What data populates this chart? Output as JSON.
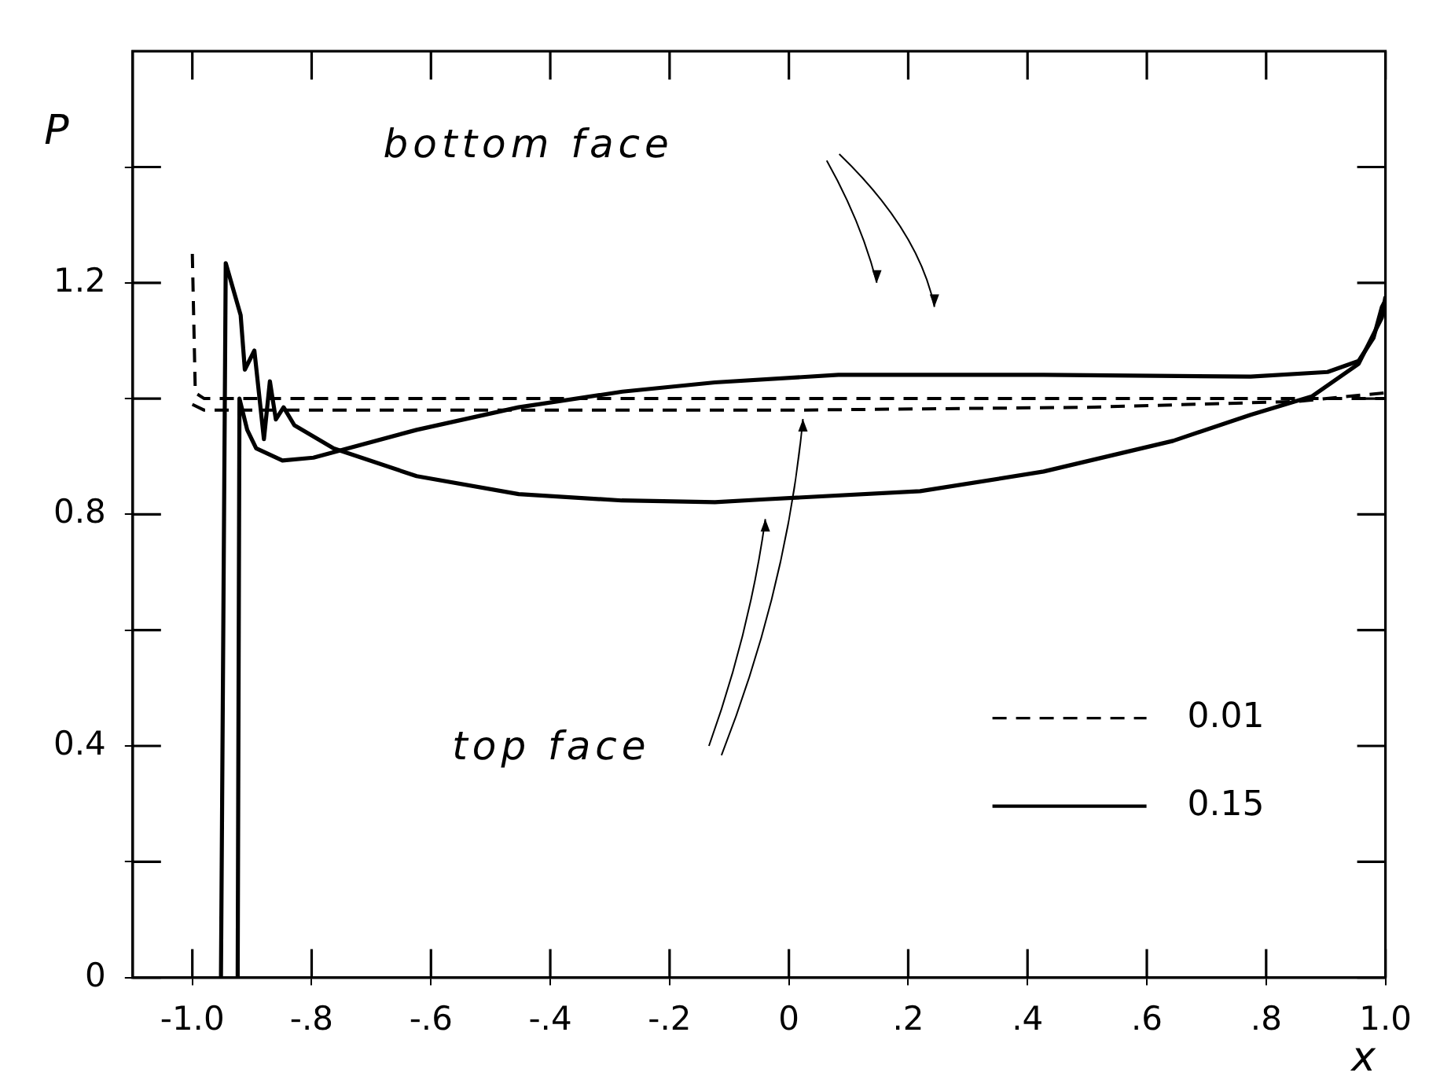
{
  "chart_data": {
    "type": "line",
    "xlabel": "x",
    "ylabel": "P",
    "xlim": [
      -1.1,
      1.0
    ],
    "ylim": [
      0,
      1.6
    ],
    "xticks": [
      {
        "value": -1.0,
        "label": "-1.0"
      },
      {
        "value": -0.8,
        "label": "-.8"
      },
      {
        "value": -0.6,
        "label": "-.6"
      },
      {
        "value": -0.4,
        "label": "-.4"
      },
      {
        "value": -0.2,
        "label": "-.2"
      },
      0,
      {
        "value": 0.2,
        "label": ".2"
      },
      {
        "value": 0.4,
        "label": ".4"
      },
      {
        "value": 0.6,
        "label": ".6"
      },
      {
        "value": 0.8,
        "label": ".8"
      },
      {
        "value": 1.0,
        "label": "1.0"
      }
    ],
    "yticks": [
      0,
      {
        "value": 0.2,
        "label": null
      },
      0.4,
      {
        "value": 0.6,
        "label": null
      },
      0.8,
      {
        "value": 1.0,
        "label": null
      },
      1.2,
      {
        "value": 1.4,
        "label": null
      }
    ],
    "grid": false,
    "legend": "bottom right",
    "marker": "none",
    "annotations": [
      "bottom face",
      "top face"
    ],
    "series": [
      {
        "name": "0.01",
        "color": "#000000",
        "line_style": "dashed",
        "x": [
          -1.0,
          -0.995,
          -0.98,
          -0.5,
          0,
          0.5,
          0.9,
          1.0
        ],
        "values": [
          1.25,
          1.01,
          1.0,
          1.0,
          1.0,
          1.0,
          1.0,
          1.0
        ]
      },
      {
        "color": "#000000",
        "line_style": "dashed",
        "x": [
          -1.0,
          -0.98,
          -0.5,
          0,
          0.5,
          0.85,
          1.0
        ],
        "values": [
          0.99,
          0.98,
          0.98,
          0.98,
          0.985,
          0.995,
          1.01
        ]
      },
      {
        "name": "0.15",
        "color": "#000000",
        "line_style": "solid",
        "x": [
          -0.952,
          -0.944,
          -0.919,
          -0.912,
          -0.896,
          -0.88,
          -0.87,
          -0.86,
          -0.847,
          -0.829,
          -0.763,
          -0.624,
          -0.453,
          -0.28,
          -0.124,
          -0.04,
          0.22,
          0.427,
          0.644,
          0.774,
          0.877,
          0.955,
          0.994,
          1.0
        ],
        "values": [
          0,
          1.234,
          1.144,
          1.05,
          1.083,
          0.93,
          1.03,
          0.964,
          0.985,
          0.954,
          0.914,
          0.866,
          0.835,
          0.824,
          0.821,
          0.826,
          0.84,
          0.874,
          0.927,
          0.972,
          1.004,
          1.06,
          1.14,
          1.176
        ]
      },
      {
        "color": "#000000",
        "line_style": "solid",
        "x": [
          -0.924,
          -0.921,
          -0.908,
          -0.893,
          -0.849,
          -0.797,
          -0.624,
          -0.453,
          -0.279,
          -0.124,
          0.083,
          0.427,
          0.774,
          0.903,
          0.955,
          0.98,
          0.994,
          1.0
        ],
        "values": [
          0,
          1.0,
          0.946,
          0.914,
          0.893,
          0.898,
          0.946,
          0.985,
          1.012,
          1.028,
          1.041,
          1.041,
          1.038,
          1.046,
          1.065,
          1.105,
          1.158,
          1.17
        ]
      }
    ]
  }
}
